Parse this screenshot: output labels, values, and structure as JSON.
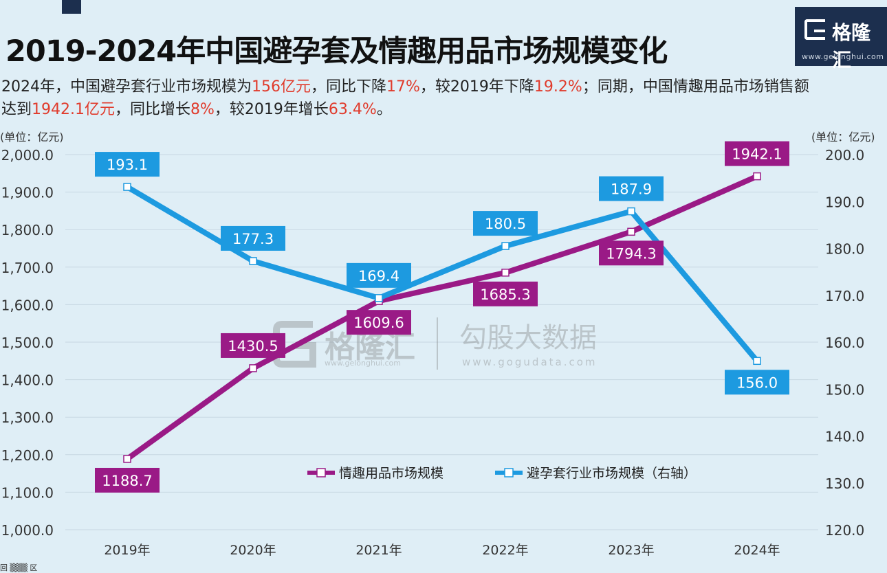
{
  "header": {
    "title": "2019-2024年中国避孕套及情趣用品市场规模变化",
    "subtitle_parts": [
      {
        "text": "2024年，中国避孕套行业市场规模为",
        "hl": false
      },
      {
        "text": "156亿元",
        "hl": true
      },
      {
        "text": "，同比下降",
        "hl": false
      },
      {
        "text": "17%",
        "hl": true
      },
      {
        "text": "，较2019年下降",
        "hl": false
      },
      {
        "text": "19.2%",
        "hl": true
      },
      {
        "text": "；同期，中国情趣用品市场销售额达到",
        "hl": false
      },
      {
        "text": "1942.1亿元",
        "hl": true
      },
      {
        "text": "，同比增长",
        "hl": false
      },
      {
        "text": "8%",
        "hl": true
      },
      {
        "text": "，较2019年增长",
        "hl": false
      },
      {
        "text": "63.4%",
        "hl": true
      },
      {
        "text": "。",
        "hl": false
      }
    ]
  },
  "logo": {
    "name": "格隆汇",
    "url": "www.gelonghui.com"
  },
  "watermark": {
    "left_name": "格隆汇",
    "left_url": "www.gelonghui.com",
    "right_name": "勾股大数据",
    "right_url": "www.gogudata.com"
  },
  "footer_mark": "回 ▒▒▒ 区",
  "colors": {
    "background": "#dfeef6",
    "purple": "#9a1a86",
    "blue": "#1d9ae0",
    "highlight": "#e03b2c",
    "logo_bg": "#1c2f4e"
  },
  "chart_data": {
    "type": "line",
    "categories": [
      "2019年",
      "2020年",
      "2021年",
      "2022年",
      "2023年",
      "2024年"
    ],
    "left_axis": {
      "unit_label": "(单位：亿元)",
      "ylim": [
        1000,
        2000
      ],
      "ticks": [
        "1,000.0",
        "1,100.0",
        "1,200.0",
        "1,300.0",
        "1,400.0",
        "1,500.0",
        "1,600.0",
        "1,700.0",
        "1,800.0",
        "1,900.0",
        "2,000.0"
      ]
    },
    "right_axis": {
      "unit_label": "(单位：亿元)",
      "ylim": [
        120,
        200
      ],
      "ticks": [
        "120.0",
        "130.0",
        "140.0",
        "150.0",
        "160.0",
        "170.0",
        "180.0",
        "190.0",
        "200.0"
      ]
    },
    "grid": true,
    "legend_position": "bottom-right",
    "series": [
      {
        "name": "情趣用品市场规模",
        "axis": "left",
        "color": "#9a1a86",
        "values": [
          1188.7,
          1430.5,
          1609.6,
          1685.3,
          1794.3,
          1942.1
        ],
        "labels": [
          "1188.7",
          "1430.5",
          "1609.6",
          "1685.3",
          "1794.3",
          "1942.1"
        ],
        "label_position": [
          "below",
          "above",
          "below",
          "below",
          "below",
          "above"
        ]
      },
      {
        "name": "避孕套行业市场规模（右轴）",
        "axis": "right",
        "color": "#1d9ae0",
        "values": [
          193.1,
          177.3,
          169.4,
          180.5,
          187.9,
          156.0
        ],
        "labels": [
          "193.1",
          "177.3",
          "169.4",
          "180.5",
          "187.9",
          "156.0"
        ],
        "label_position": [
          "above",
          "above",
          "above",
          "above",
          "above",
          "below"
        ]
      }
    ]
  }
}
